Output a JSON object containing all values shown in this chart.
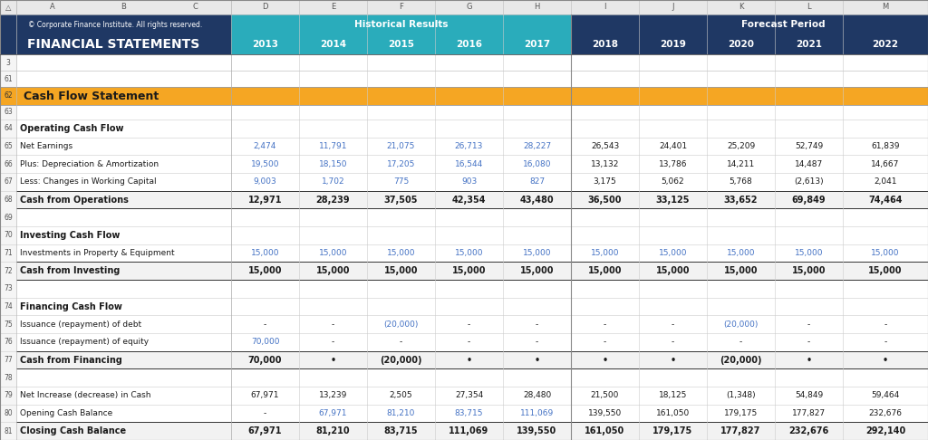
{
  "title_row1_left": "© Corporate Finance Institute. All rights reserved.",
  "title_row1_center": "Historical Results",
  "title_row1_right": "Forecast Period",
  "title_row2_left": "FINANCIAL STATEMENTS",
  "col_headers": [
    "△",
    "A",
    "B",
    "C",
    "D",
    "E",
    "F",
    "G",
    "H",
    "I",
    "J",
    "K",
    "L",
    "M"
  ],
  "years": [
    "2013",
    "2014",
    "2015",
    "2016",
    "2017",
    "2018",
    "2019",
    "2020",
    "2021",
    "2022"
  ],
  "section_header": "Cash Flow Statement",
  "rows": [
    {
      "rownum": "64",
      "label": "Operating Cash Flow",
      "type": "subheader",
      "values": [
        "",
        "",
        "",
        "",
        "",
        "",
        "",
        "",
        "",
        ""
      ]
    },
    {
      "rownum": "65",
      "label": "Net Earnings",
      "type": "data_blue_hist",
      "values": [
        "2,474",
        "11,791",
        "21,075",
        "26,713",
        "28,227",
        "26,543",
        "24,401",
        "25,209",
        "52,749",
        "61,839"
      ]
    },
    {
      "rownum": "66",
      "label": "Plus: Depreciation & Amortization",
      "type": "data_blue_hist",
      "values": [
        "19,500",
        "18,150",
        "17,205",
        "16,544",
        "16,080",
        "13,132",
        "13,786",
        "14,211",
        "14,487",
        "14,667"
      ]
    },
    {
      "rownum": "67",
      "label": "Less: Changes in Working Capital",
      "type": "data_blue_hist",
      "values": [
        "9,003",
        "1,702",
        "775",
        "903",
        "827",
        "3,175",
        "5,062",
        "5,768",
        "(2,613)",
        "2,041"
      ]
    },
    {
      "rownum": "68",
      "label": "Cash from Operations",
      "type": "bold_total",
      "values": [
        "12,971",
        "28,239",
        "37,505",
        "42,354",
        "43,480",
        "36,500",
        "33,125",
        "33,652",
        "69,849",
        "74,464"
      ]
    },
    {
      "rownum": "69",
      "label": "",
      "type": "empty",
      "values": [
        "",
        "",
        "",
        "",
        "",
        "",
        "",
        "",
        "",
        ""
      ]
    },
    {
      "rownum": "70",
      "label": "Investing Cash Flow",
      "type": "subheader",
      "values": [
        "",
        "",
        "",
        "",
        "",
        "",
        "",
        "",
        "",
        ""
      ]
    },
    {
      "rownum": "71",
      "label": "Investments in Property & Equipment",
      "type": "data_blue_all",
      "values": [
        "15,000",
        "15,000",
        "15,000",
        "15,000",
        "15,000",
        "15,000",
        "15,000",
        "15,000",
        "15,000",
        "15,000"
      ]
    },
    {
      "rownum": "72",
      "label": "Cash from Investing",
      "type": "bold_total",
      "values": [
        "15,000",
        "15,000",
        "15,000",
        "15,000",
        "15,000",
        "15,000",
        "15,000",
        "15,000",
        "15,000",
        "15,000"
      ]
    },
    {
      "rownum": "73",
      "label": "",
      "type": "empty",
      "values": [
        "",
        "",
        "",
        "",
        "",
        "",
        "",
        "",
        "",
        ""
      ]
    },
    {
      "rownum": "74",
      "label": "Financing Cash Flow",
      "type": "subheader",
      "values": [
        "",
        "",
        "",
        "",
        "",
        "",
        "",
        "",
        "",
        ""
      ]
    },
    {
      "rownum": "75",
      "label": "Issuance (repayment) of debt",
      "type": "data_blue_finance",
      "values": [
        "-",
        "-",
        "(20,000)",
        "-",
        "-",
        "-",
        "-",
        "(20,000)",
        "-",
        "-"
      ]
    },
    {
      "rownum": "76",
      "label": "Issuance (repayment) of equity",
      "type": "data_blue_finance2",
      "values": [
        "70,000",
        "-",
        "-",
        "-",
        "-",
        "-",
        "-",
        "-",
        "-",
        "-"
      ]
    },
    {
      "rownum": "77",
      "label": "Cash from Financing",
      "type": "bold_total",
      "values": [
        "70,000",
        "•",
        "(20,000)",
        "•",
        "•",
        "•",
        "•",
        "(20,000)",
        "•",
        "•"
      ]
    },
    {
      "rownum": "78",
      "label": "",
      "type": "empty",
      "values": [
        "",
        "",
        "",
        "",
        "",
        "",
        "",
        "",
        "",
        ""
      ]
    },
    {
      "rownum": "79",
      "label": "Net Increase (decrease) in Cash",
      "type": "data_normal",
      "values": [
        "67,971",
        "13,239",
        "2,505",
        "27,354",
        "28,480",
        "21,500",
        "18,125",
        "(1,348)",
        "54,849",
        "59,464"
      ]
    },
    {
      "rownum": "80",
      "label": "Opening Cash Balance",
      "type": "data_blue_open",
      "values": [
        "-",
        "67,971",
        "81,210",
        "83,715",
        "111,069",
        "139,550",
        "161,050",
        "179,175",
        "177,827",
        "232,676"
      ]
    },
    {
      "rownum": "81",
      "label": "Closing Cash Balance",
      "type": "bold_total_final",
      "values": [
        "67,971",
        "81,210",
        "83,715",
        "111,069",
        "139,550",
        "161,050",
        "179,175",
        "177,827",
        "232,676",
        "292,140"
      ]
    }
  ],
  "colors": {
    "header_dark_blue": "#1F3864",
    "header_teal": "#2AACBB",
    "section_orange": "#F5A623",
    "text_white": "#FFFFFF",
    "text_blue": "#4472C4",
    "text_black": "#1A1A1A",
    "col_header_bg": "#E8E8E8",
    "col_header_border": "#AAAAAA",
    "row_num_bg": "#F5F5F5",
    "row_bg_white": "#FFFFFF",
    "row_bg_total": "#F2F2F2",
    "grid_line": "#C8C8C8",
    "outer_border": "#888888"
  },
  "figsize": [
    10.24,
    4.86
  ],
  "dpi": 100
}
